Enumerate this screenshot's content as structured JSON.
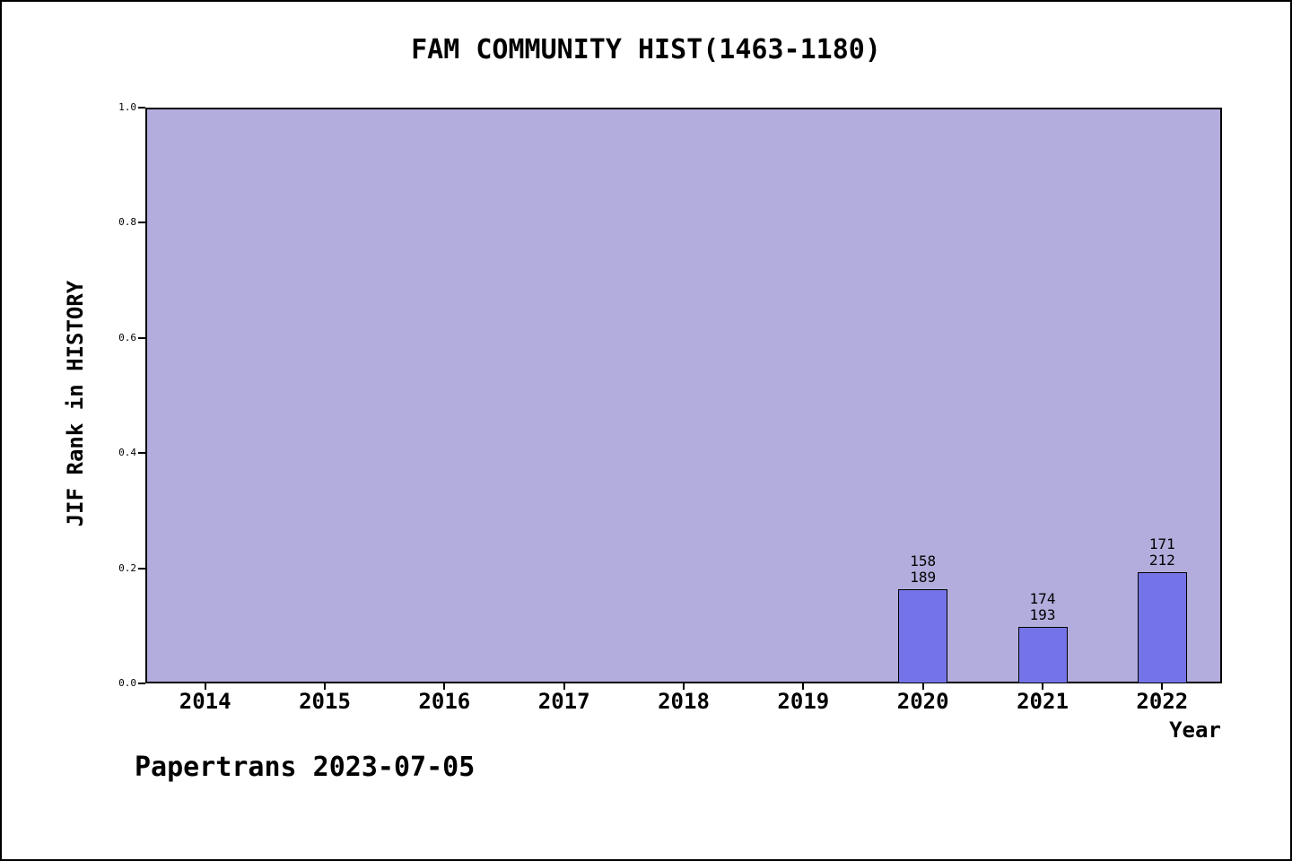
{
  "chart_data": {
    "type": "bar",
    "title": "FAM COMMUNITY HIST(1463-1180)",
    "xlabel": "Year",
    "ylabel": "JIF Rank in HISTORY",
    "footer": "Papertrans 2023-07-05",
    "categories": [
      "2014",
      "2015",
      "2016",
      "2017",
      "2018",
      "2019",
      "2020",
      "2021",
      "2022"
    ],
    "ylim": [
      0.0,
      1.0
    ],
    "yticks": [
      {
        "label": "0.0",
        "value": 0.0
      },
      {
        "label": "0.2",
        "value": 0.2
      },
      {
        "label": "0.4",
        "value": 0.4
      },
      {
        "label": "0.6",
        "value": 0.6
      },
      {
        "label": "0.8",
        "value": 0.8
      },
      {
        "label": "1.0",
        "value": 1.0
      }
    ],
    "bars": [
      {
        "category": "2020",
        "value": 0.163,
        "label_top": "158",
        "label_bottom": "189"
      },
      {
        "category": "2021",
        "value": 0.098,
        "label_top": "174",
        "label_bottom": "193"
      },
      {
        "category": "2022",
        "value": 0.193,
        "label_top": "171",
        "label_bottom": "212"
      }
    ],
    "colors": {
      "plot_background": "#b3addd",
      "bar_fill": "#7474e8",
      "bar_edge": "#000000",
      "text": "#000000"
    },
    "legend": "none",
    "grid": "off"
  }
}
